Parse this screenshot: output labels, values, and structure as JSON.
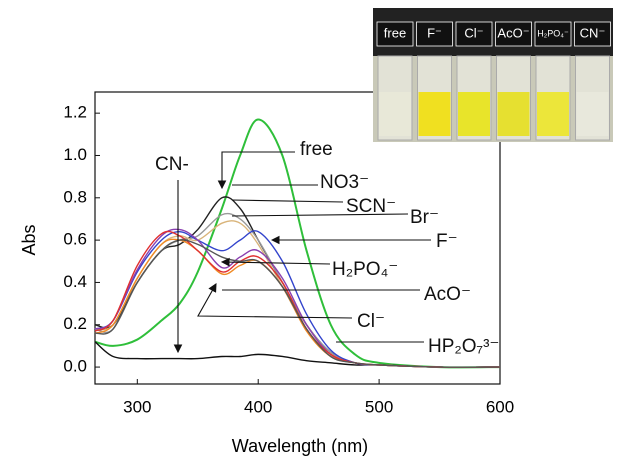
{
  "chart_data": {
    "type": "line",
    "y_label": "Abs",
    "x_label": "Wavelength (nm)",
    "xlim": [
      265,
      600
    ],
    "ylim": [
      -0.08,
      1.3
    ],
    "xticks": [
      300,
      400,
      500,
      600
    ],
    "yticks": [
      {
        "value": 0,
        "label": "0.0"
      },
      0.2,
      0.4,
      0.6,
      0.8,
      {
        "value": 1,
        "label": "1.0"
      },
      1.2
    ],
    "x": [
      265,
      280,
      300,
      320,
      335,
      350,
      370,
      385,
      400,
      420,
      440,
      460,
      480,
      500,
      550,
      600
    ],
    "series": [
      {
        "name": "free",
        "color": "#2fbf3a",
        "values": [
          0.12,
          0.1,
          0.13,
          0.22,
          0.3,
          0.45,
          0.75,
          1.0,
          1.17,
          1.0,
          0.55,
          0.2,
          0.06,
          0.02,
          0.0,
          0.0
        ]
      },
      {
        "name": "CN-",
        "color": "#111111",
        "values": [
          0.12,
          0.05,
          0.04,
          0.04,
          0.04,
          0.04,
          0.05,
          0.05,
          0.06,
          0.05,
          0.03,
          0.02,
          0.01,
          0.01,
          0.0,
          0.0
        ]
      },
      {
        "name": "NO3⁻",
        "color": "#222222",
        "values": [
          0.2,
          0.2,
          0.4,
          0.55,
          0.58,
          0.65,
          0.8,
          0.75,
          0.6,
          0.4,
          0.2,
          0.07,
          0.02,
          0.01,
          0.0,
          0.0
        ]
      },
      {
        "name": "SCN⁻",
        "color": "#999999",
        "values": [
          0.18,
          0.18,
          0.4,
          0.55,
          0.6,
          0.62,
          0.72,
          0.7,
          0.6,
          0.4,
          0.2,
          0.07,
          0.02,
          0.01,
          0.0,
          0.0
        ]
      },
      {
        "name": "Br⁻",
        "color": "#d9b47a",
        "values": [
          0.18,
          0.2,
          0.42,
          0.58,
          0.62,
          0.6,
          0.68,
          0.68,
          0.58,
          0.38,
          0.18,
          0.06,
          0.02,
          0.01,
          0.0,
          0.0
        ]
      },
      {
        "name": "F⁻",
        "color": "#3344cc",
        "values": [
          0.18,
          0.22,
          0.45,
          0.6,
          0.64,
          0.6,
          0.55,
          0.6,
          0.64,
          0.5,
          0.25,
          0.08,
          0.02,
          0.01,
          0.0,
          0.0
        ]
      },
      {
        "name": "H₂PO₄⁻",
        "color": "#8a3fb0",
        "values": [
          0.18,
          0.22,
          0.46,
          0.62,
          0.65,
          0.6,
          0.47,
          0.52,
          0.55,
          0.42,
          0.2,
          0.06,
          0.02,
          0.01,
          0.0,
          0.0
        ]
      },
      {
        "name": "AcO⁻",
        "color": "#f08a24",
        "values": [
          0.16,
          0.2,
          0.42,
          0.58,
          0.6,
          0.55,
          0.44,
          0.48,
          0.5,
          0.38,
          0.17,
          0.05,
          0.02,
          0.01,
          0.0,
          0.0
        ]
      },
      {
        "name": "Cl⁻",
        "color": "#e03030",
        "values": [
          0.17,
          0.22,
          0.48,
          0.63,
          0.62,
          0.55,
          0.45,
          0.5,
          0.52,
          0.4,
          0.18,
          0.06,
          0.02,
          0.01,
          0.0,
          0.0
        ]
      },
      {
        "name": "HP₂O₇³⁻",
        "color": "#555555",
        "values": [
          0.16,
          0.18,
          0.4,
          0.55,
          0.6,
          0.58,
          0.52,
          0.5,
          0.5,
          0.38,
          0.18,
          0.05,
          0.02,
          0.01,
          0.0,
          0.0
        ]
      }
    ]
  },
  "inset": {
    "labels": [
      "free",
      "F⁻",
      "Cl⁻",
      "AcO⁻",
      "H₂PO₄⁻",
      "CN⁻"
    ]
  }
}
